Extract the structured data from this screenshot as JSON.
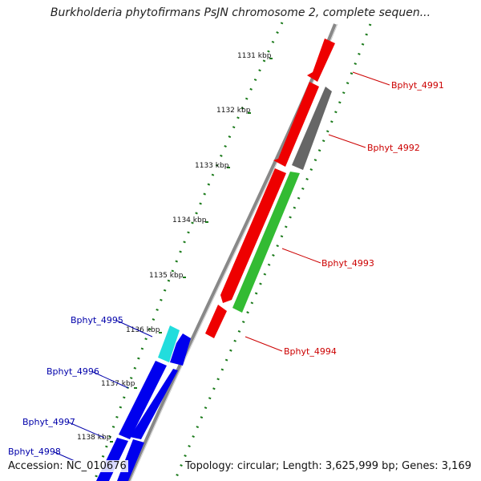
{
  "title": "Burkholderia phytofirmans PsJN chromosome 2, complete sequen...",
  "footer": {
    "accession": "Accession: NC_010676",
    "summary": "Topology: circular; Length: 3,625,999 bp; Genes: 3,169"
  },
  "colors": {
    "backbone": "#888888",
    "tick": "#1a7a1a",
    "forward_label": "#cc0000",
    "reverse_label": "#0000aa",
    "red": "#ee0000",
    "grey": "#666666",
    "green": "#33bb33",
    "cyan": "#22dddd",
    "blue": "#0000ee"
  },
  "kbp_labels": [
    "1131 kbp",
    "1132 kbp",
    "1133 kbp",
    "1134 kbp",
    "1135 kbp",
    "1136 kbp",
    "1137 kbp",
    "1138 kbp"
  ],
  "gene_labels": [
    {
      "text": "Bphyt_4991",
      "strand": "forward"
    },
    {
      "text": "Bphyt_4992",
      "strand": "forward"
    },
    {
      "text": "Bphyt_4993",
      "strand": "forward"
    },
    {
      "text": "Bphyt_4994",
      "strand": "forward"
    },
    {
      "text": "Bphyt_4995",
      "strand": "reverse"
    },
    {
      "text": "Bphyt_4996",
      "strand": "reverse"
    },
    {
      "text": "Bphyt_4997",
      "strand": "reverse"
    },
    {
      "text": "Bphyt_4998",
      "strand": "reverse"
    }
  ]
}
